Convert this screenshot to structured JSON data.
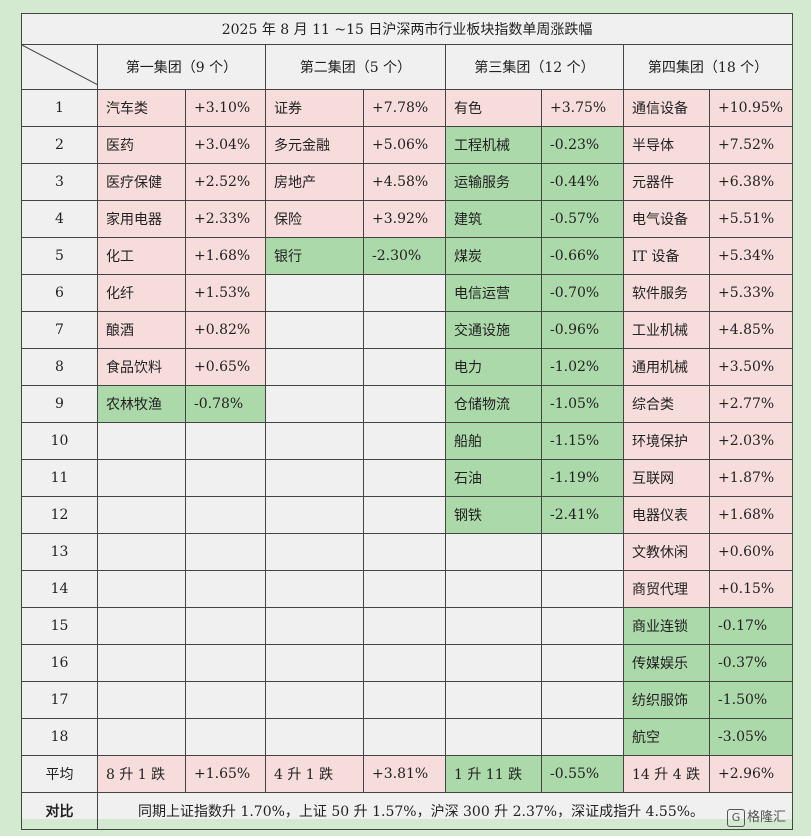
{
  "title": "2025 年 8 月 11 ~15 日沪深两市行业板块指数单周涨跌幅",
  "colors": {
    "up": "#f7dcdc",
    "down": "#acd9aa",
    "neutral": "#f0f0f0",
    "page_bg": "#d3ead0"
  },
  "groups": [
    {
      "name": "第一集团（9 个）",
      "items": [
        {
          "name": "汽车类",
          "change": "+3.10%",
          "dir": "up"
        },
        {
          "name": "医药",
          "change": "+3.04%",
          "dir": "up"
        },
        {
          "name": "医疗保健",
          "change": "+2.52%",
          "dir": "up"
        },
        {
          "name": "家用电器",
          "change": "+2.33%",
          "dir": "up"
        },
        {
          "name": "化工",
          "change": "+1.68%",
          "dir": "up"
        },
        {
          "name": "化纤",
          "change": "+1.53%",
          "dir": "up"
        },
        {
          "name": "酿酒",
          "change": "+0.82%",
          "dir": "up"
        },
        {
          "name": "食品饮料",
          "change": "+0.65%",
          "dir": "up"
        },
        {
          "name": "农林牧渔",
          "change": "-0.78%",
          "dir": "down"
        }
      ],
      "avg": {
        "label": "8 升 1 跌",
        "value": "+1.65%",
        "dir": "up"
      }
    },
    {
      "name": "第二集团（5 个）",
      "items": [
        {
          "name": "证券",
          "change": "+7.78%",
          "dir": "up"
        },
        {
          "name": "多元金融",
          "change": "+5.06%",
          "dir": "up"
        },
        {
          "name": "房地产",
          "change": "+4.58%",
          "dir": "up"
        },
        {
          "name": "保险",
          "change": "+3.92%",
          "dir": "up"
        },
        {
          "name": "银行",
          "change": "-2.30%",
          "dir": "down"
        }
      ],
      "avg": {
        "label": "4 升 1 跌",
        "value": "+3.81%",
        "dir": "up"
      }
    },
    {
      "name": "第三集团（12 个）",
      "items": [
        {
          "name": "有色",
          "change": "+3.75%",
          "dir": "up"
        },
        {
          "name": "工程机械",
          "change": "-0.23%",
          "dir": "down"
        },
        {
          "name": "运输服务",
          "change": "-0.44%",
          "dir": "down"
        },
        {
          "name": "建筑",
          "change": "-0.57%",
          "dir": "down"
        },
        {
          "name": "煤炭",
          "change": "-0.66%",
          "dir": "down"
        },
        {
          "name": "电信运营",
          "change": "-0.70%",
          "dir": "down"
        },
        {
          "name": "交通设施",
          "change": "-0.96%",
          "dir": "down"
        },
        {
          "name": "电力",
          "change": "-1.02%",
          "dir": "down"
        },
        {
          "name": "仓储物流",
          "change": "-1.05%",
          "dir": "down"
        },
        {
          "name": "船舶",
          "change": "-1.15%",
          "dir": "down"
        },
        {
          "name": "石油",
          "change": "-1.19%",
          "dir": "down"
        },
        {
          "name": "钢铁",
          "change": "-2.41%",
          "dir": "down"
        }
      ],
      "avg": {
        "label": "1 升 11 跌",
        "value": "-0.55%",
        "dir": "down"
      }
    },
    {
      "name": "第四集团（18 个）",
      "items": [
        {
          "name": "通信设备",
          "change": "+10.95%",
          "dir": "up"
        },
        {
          "name": "半导体",
          "change": "+7.52%",
          "dir": "up"
        },
        {
          "name": "元器件",
          "change": "+6.38%",
          "dir": "up"
        },
        {
          "name": "电气设备",
          "change": "+5.51%",
          "dir": "up"
        },
        {
          "name": "IT 设备",
          "change": "+5.34%",
          "dir": "up"
        },
        {
          "name": "软件服务",
          "change": "+5.33%",
          "dir": "up"
        },
        {
          "name": "工业机械",
          "change": "+4.85%",
          "dir": "up"
        },
        {
          "name": "通用机械",
          "change": "+3.50%",
          "dir": "up"
        },
        {
          "name": "综合类",
          "change": "+2.77%",
          "dir": "up"
        },
        {
          "name": "环境保护",
          "change": "+2.03%",
          "dir": "up"
        },
        {
          "name": "互联网",
          "change": "+1.87%",
          "dir": "up"
        },
        {
          "name": "电器仪表",
          "change": "+1.68%",
          "dir": "up"
        },
        {
          "name": "文教休闲",
          "change": "+0.60%",
          "dir": "up"
        },
        {
          "name": "商贸代理",
          "change": "+0.15%",
          "dir": "up"
        },
        {
          "name": "商业连锁",
          "change": "-0.17%",
          "dir": "down"
        },
        {
          "name": "传媒娱乐",
          "change": "-0.37%",
          "dir": "down"
        },
        {
          "name": "纺织服饰",
          "change": "-1.50%",
          "dir": "down"
        },
        {
          "name": "航空",
          "change": "-3.05%",
          "dir": "down"
        }
      ],
      "avg": {
        "label": "14 升 4 跌",
        "value": "+2.96%",
        "dir": "up"
      }
    }
  ],
  "row_numbers": [
    "1",
    "2",
    "3",
    "4",
    "5",
    "6",
    "7",
    "8",
    "9",
    "10",
    "11",
    "12",
    "13",
    "14",
    "15",
    "16",
    "17",
    "18"
  ],
  "avg_label": "平均",
  "compare_label": "对比",
  "compare_text": "同期上证指数升 1.70%，上证 50 升 1.57%，沪深 300 升 2.37%，深证成指升 4.55%。",
  "watermark": {
    "logo_icon": "gelonghui-logo",
    "logo_glyph": "G",
    "text": "格隆汇"
  }
}
